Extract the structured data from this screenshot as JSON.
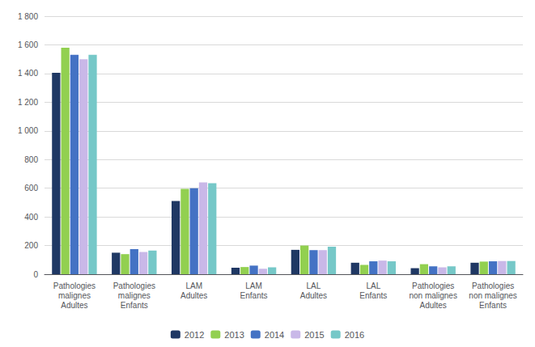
{
  "chart_data": {
    "type": "bar",
    "categories": [
      "Pathologies\nmalignes\nAdultes",
      "Pathologies\nmalignes\nEnfants",
      "LAM\nAdultes",
      "LAM\nEnfants",
      "LAL\nAdultes",
      "LAL\nEnfants",
      "Pathologies\nnon malignes\nAdultes",
      "Pathologies\nnon malignes\nEnfants"
    ],
    "series": [
      {
        "name": "2012",
        "color": "#1F3864",
        "values": [
          1405,
          150,
          510,
          45,
          170,
          80,
          42,
          80
        ]
      },
      {
        "name": "2013",
        "color": "#92D050",
        "values": [
          1580,
          140,
          595,
          50,
          200,
          65,
          70,
          88
        ]
      },
      {
        "name": "2014",
        "color": "#4472C4",
        "values": [
          1530,
          175,
          600,
          60,
          168,
          90,
          55,
          90
        ]
      },
      {
        "name": "2015",
        "color": "#C9B8E8",
        "values": [
          1500,
          155,
          640,
          38,
          168,
          95,
          48,
          92
        ]
      },
      {
        "name": "2016",
        "color": "#76C8C8",
        "values": [
          1530,
          165,
          635,
          48,
          192,
          90,
          55,
          92
        ]
      }
    ],
    "ylim": [
      0,
      1800
    ],
    "yticks": [
      0,
      200,
      400,
      600,
      800,
      {
        "value": 1000,
        "label": "1 000"
      },
      {
        "value": 1200,
        "label": "1 200"
      },
      {
        "value": 1400,
        "label": "1 400"
      },
      {
        "value": 1600,
        "label": "1 600"
      },
      {
        "value": 1800,
        "label": "1 800"
      }
    ],
    "grid": true,
    "legend": "bottom"
  }
}
